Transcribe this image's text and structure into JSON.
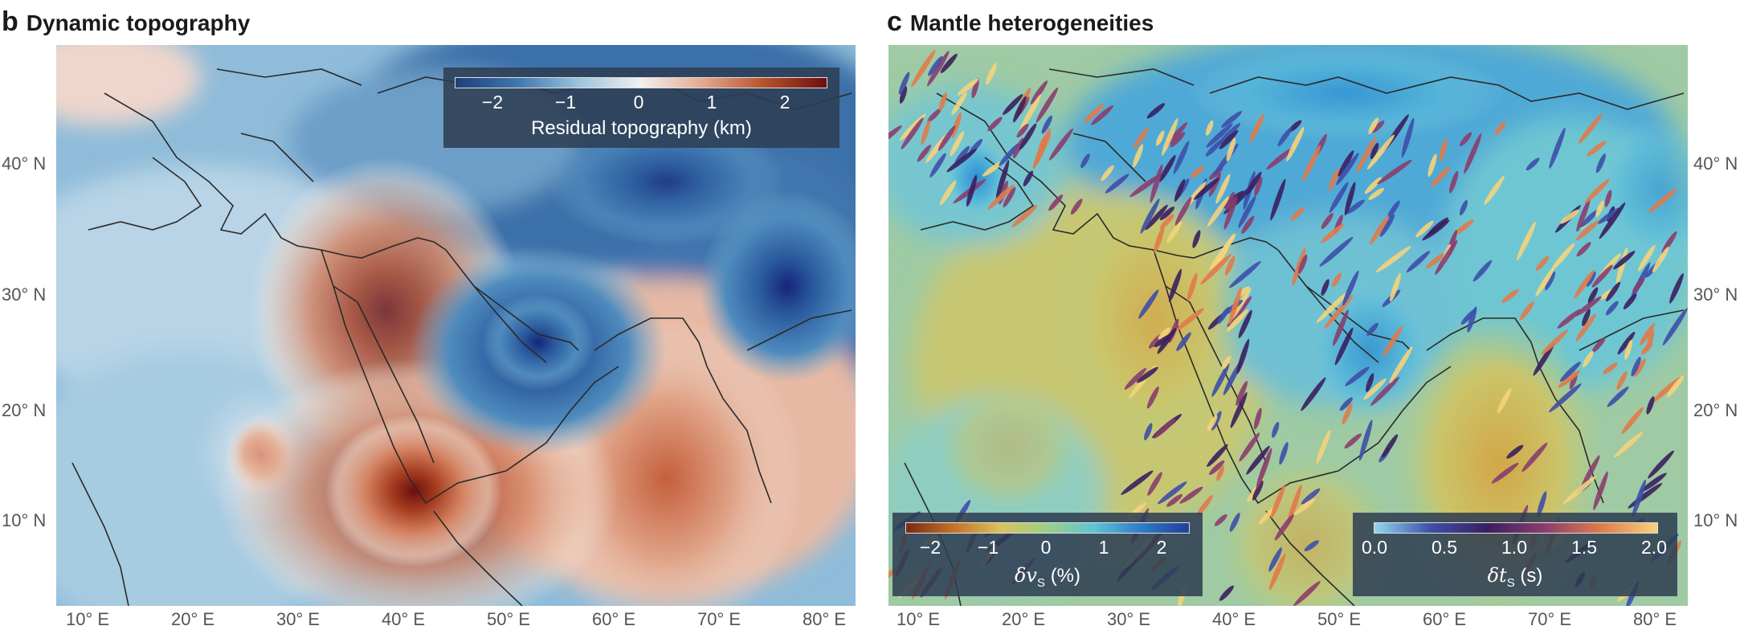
{
  "panel_b": {
    "letter": "b",
    "title": "Dynamic topography",
    "colorbar": {
      "ticks": [
        "−2",
        "−1",
        "0",
        "1",
        "2"
      ],
      "label": "Residual topography (km)",
      "colors": [
        "#1f3f7a",
        "#3f76ad",
        "#9cc5dd",
        "#f2f0ef",
        "#e3a98c",
        "#b5522a",
        "#6b0f10"
      ]
    }
  },
  "panel_c": {
    "letter": "c",
    "title": "Mantle heterogeneities",
    "colorbar_vs": {
      "ticks": [
        "−2",
        "−1",
        "0",
        "1",
        "2"
      ],
      "label": "δv",
      "label_sub": "S",
      "label_unit": "(%)",
      "colors": [
        "#7a2a12",
        "#c6702a",
        "#d9c25a",
        "#9ccf86",
        "#5cc3d6",
        "#2e7bc8",
        "#1f3f9a"
      ]
    },
    "colorbar_dt": {
      "ticks": [
        "0.0",
        "0.5",
        "1.0",
        "1.5",
        "2.0"
      ],
      "label": "δt",
      "label_sub": "S",
      "label_unit": "(s)",
      "colors": [
        "#8fd8ee",
        "#3d4fa8",
        "#3a1f5e",
        "#8a3d6e",
        "#e07a4a",
        "#f5d37a"
      ]
    }
  },
  "axes": {
    "lon_ticks": [
      "10° E",
      "20° E",
      "30° E",
      "40° E",
      "50° E",
      "60° E",
      "70° E",
      "80° E"
    ],
    "lat_ticks": [
      "40° N",
      "30° N",
      "20° N",
      "10° N"
    ]
  },
  "map_colors": {
    "land_outline": "#2a2a2a",
    "topo_blue_deep": "#1d2f7a",
    "topo_red_deep": "#7a0e0d",
    "tomo_base": "#9cc9a6"
  }
}
